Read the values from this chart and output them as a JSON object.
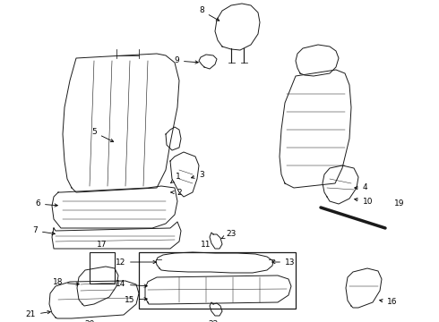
{
  "bg_color": "#ffffff",
  "line_color": "#1a1a1a",
  "label_color": "#000000",
  "figsize": [
    4.9,
    3.6
  ],
  "dpi": 100,
  "lw": 0.7,
  "fs": 6.5
}
